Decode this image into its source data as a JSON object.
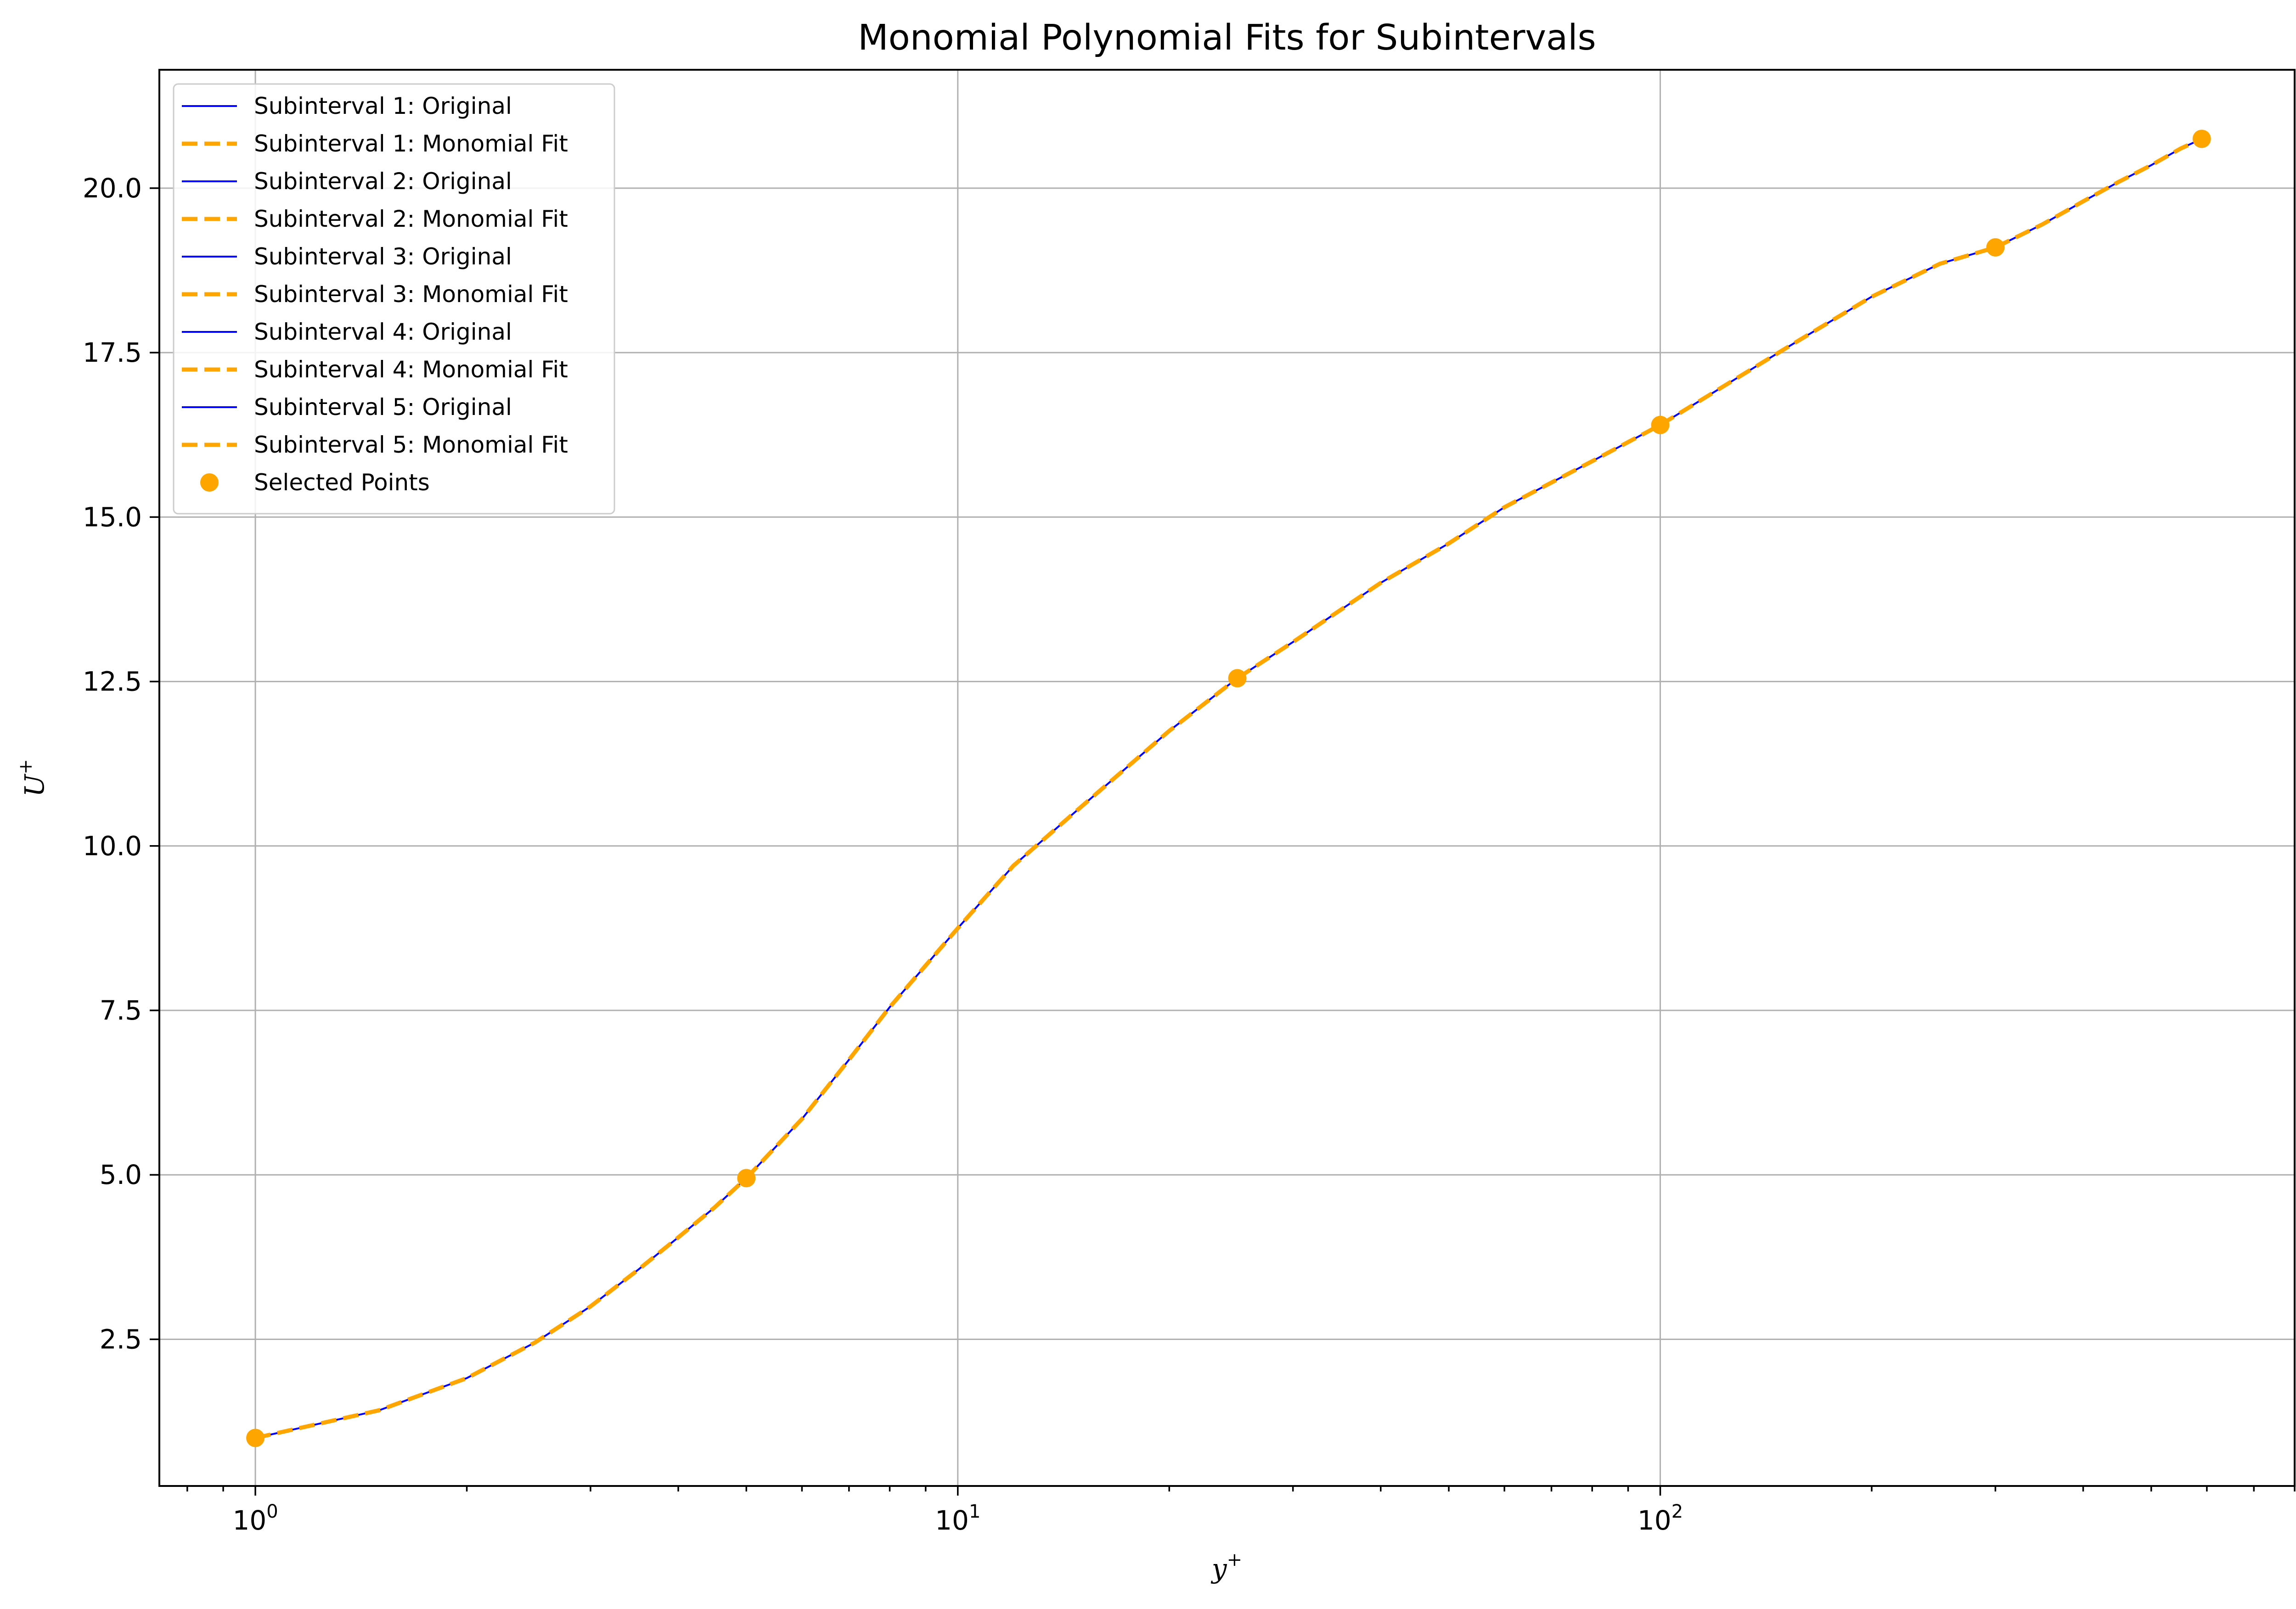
{
  "chart_data": {
    "type": "line",
    "title": "Monomial Polynomial Fits for Subintervals",
    "xlabel": "y",
    "xlabel_sup": "+",
    "ylabel": "U",
    "ylabel_sup": "+",
    "xscale": "log",
    "xlim": [
      0.73,
      800
    ],
    "ylim": [
      0.27,
      21.8
    ],
    "grid": true,
    "legend_position": "top-left",
    "x_ticks": [
      {
        "value": 1,
        "base": "10",
        "exp": "0"
      },
      {
        "value": 10,
        "base": "10",
        "exp": "1"
      },
      {
        "value": 100,
        "base": "10",
        "exp": "2"
      }
    ],
    "y_ticks": [
      {
        "value": 2.5,
        "label": "2.5"
      },
      {
        "value": 5.0,
        "label": "5.0"
      },
      {
        "value": 7.5,
        "label": "7.5"
      },
      {
        "value": 10.0,
        "label": "10.0"
      },
      {
        "value": 12.5,
        "label": "12.5"
      },
      {
        "value": 15.0,
        "label": "15.0"
      },
      {
        "value": 17.5,
        "label": "17.5"
      },
      {
        "value": 20.0,
        "label": "20.0"
      }
    ],
    "colors": {
      "original": "#0000ff",
      "fit": "#ffa500",
      "points": "#ffa500"
    },
    "series": [
      {
        "name": "Subinterval 1: Original",
        "style": "original",
        "x": [
          1,
          1.5,
          2,
          2.5,
          3,
          3.5,
          4,
          4.5,
          5
        ],
        "y": [
          1.0,
          1.42,
          1.91,
          2.45,
          3.0,
          3.55,
          4.05,
          4.5,
          4.95
        ]
      },
      {
        "name": "Subinterval 1: Monomial Fit",
        "style": "fit",
        "x": [
          1,
          1.5,
          2,
          2.5,
          3,
          3.5,
          4,
          4.5,
          5
        ],
        "y": [
          1.0,
          1.42,
          1.91,
          2.45,
          3.0,
          3.55,
          4.05,
          4.5,
          4.95
        ]
      },
      {
        "name": "Subinterval 2: Original",
        "style": "original",
        "x": [
          5,
          6,
          7,
          8,
          10,
          12,
          15,
          20,
          25
        ],
        "y": [
          4.95,
          5.85,
          6.75,
          7.55,
          8.75,
          9.7,
          10.6,
          11.75,
          12.55
        ]
      },
      {
        "name": "Subinterval 2: Monomial Fit",
        "style": "fit",
        "x": [
          5,
          6,
          7,
          8,
          10,
          12,
          15,
          20,
          25
        ],
        "y": [
          4.95,
          5.85,
          6.75,
          7.55,
          8.75,
          9.7,
          10.6,
          11.75,
          12.55
        ]
      },
      {
        "name": "Subinterval 3: Original",
        "style": "original",
        "x": [
          25,
          30,
          40,
          50,
          60,
          80,
          100
        ],
        "y": [
          12.55,
          13.1,
          14.0,
          14.6,
          15.15,
          15.85,
          16.4
        ]
      },
      {
        "name": "Subinterval 3: Monomial Fit",
        "style": "fit",
        "x": [
          25,
          30,
          40,
          50,
          60,
          80,
          100
        ],
        "y": [
          12.55,
          13.1,
          14.0,
          14.6,
          15.15,
          15.85,
          16.4
        ]
      },
      {
        "name": "Subinterval 4: Original",
        "style": "original",
        "x": [
          100,
          150,
          200,
          250,
          300
        ],
        "y": [
          16.4,
          17.55,
          18.35,
          18.85,
          19.1
        ]
      },
      {
        "name": "Subinterval 4: Monomial Fit",
        "style": "fit",
        "x": [
          100,
          150,
          200,
          250,
          300
        ],
        "y": [
          16.4,
          17.55,
          18.35,
          18.85,
          19.1
        ]
      },
      {
        "name": "Subinterval 5: Original",
        "style": "original",
        "x": [
          300,
          350,
          400,
          450,
          500,
          550,
          590
        ],
        "y": [
          19.1,
          19.45,
          19.8,
          20.1,
          20.35,
          20.6,
          20.75
        ]
      },
      {
        "name": "Subinterval 5: Monomial Fit",
        "style": "fit",
        "x": [
          300,
          350,
          400,
          450,
          500,
          550,
          590
        ],
        "y": [
          19.1,
          19.45,
          19.8,
          20.1,
          20.35,
          20.6,
          20.75
        ]
      }
    ],
    "selected_points": {
      "name": "Selected Points",
      "x": [
        1,
        5,
        25,
        100,
        300,
        590
      ],
      "y": [
        1.0,
        4.95,
        12.55,
        16.4,
        19.1,
        20.75
      ]
    }
  }
}
